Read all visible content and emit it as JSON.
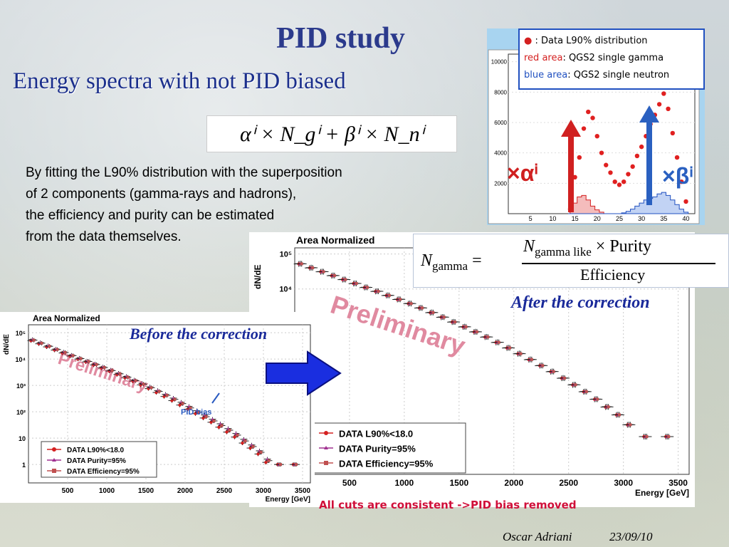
{
  "title": "PID study",
  "subtitle": "Energy spectra with not PID biased",
  "fit_formula": "αⁱ × N_gⁱ + βⁱ × N_nⁱ",
  "description": [
    "By fitting the L90% distribution with the superposition",
    "of 2 components (gamma-rays and hadrons),",
    "the efficiency and purity can be estimated",
    "from the data themselves."
  ],
  "inset": {
    "legend": [
      {
        "marker": "●",
        "key": "",
        "label": ": Data L90% distribution",
        "color": "#d42020"
      },
      {
        "marker": "",
        "key": "red area",
        "label": ": QGS2 single gamma",
        "color": "#d42020"
      },
      {
        "marker": "",
        "key": "blue area",
        "label": ": QGS2 single neutron",
        "color": "#2050c0"
      }
    ],
    "alpha_label": "×αⁱ",
    "beta_label": "×βⁱ",
    "y_ticks": [
      "10000",
      "8000",
      "6000",
      "4000",
      "2000"
    ],
    "x_ticks": [
      "5",
      "10",
      "15",
      "20",
      "25",
      "30",
      "35",
      "40"
    ]
  },
  "correction_formula": {
    "lhs": "N",
    "lhs_sub": "gamma",
    "num": "N",
    "num_sub": "gamma like",
    "num_tail": "× Purity",
    "den": "Efficiency"
  },
  "label_before": "Before the correction",
  "label_after": "After the correction",
  "pid_bias_label": "PID bias",
  "consistency_note": "All cuts are consistent ->PID bias removed",
  "footer": {
    "author": "Oscar Adriani",
    "date": "23/09/10"
  },
  "colors": {
    "title": "#2b3a8c",
    "accent": "#1a2a9a",
    "data": "#d42020",
    "purity": "#a03090",
    "efficiency": "#c05050",
    "arrow": "#1a2ee0"
  },
  "chart_data": [
    {
      "type": "scatter",
      "title": "Area Normalized",
      "watermark": "Preliminary",
      "ylabel": "dN/dE",
      "xlabel": "Energy [GeV]",
      "log_y": true,
      "xlim": [
        0,
        3600
      ],
      "x_ticks": [
        "500",
        "1000",
        "1500",
        "2000",
        "2500",
        "3000",
        "3500"
      ],
      "y_ticks": [
        "10⁵",
        "10⁴",
        "10³",
        "10²",
        "10",
        "1"
      ],
      "y_tick_values": [
        100000,
        10000,
        1000,
        100,
        10,
        1
      ],
      "ylim": [
        0.2,
        200000
      ],
      "x": [
        50,
        150,
        250,
        350,
        450,
        550,
        650,
        750,
        850,
        950,
        1050,
        1150,
        1250,
        1350,
        1450,
        1550,
        1650,
        1750,
        1850,
        1950,
        2050,
        2150,
        2250,
        2350,
        2450,
        2550,
        2650,
        2750,
        2850,
        2950,
        3050,
        3200,
        3400
      ],
      "series": [
        {
          "name": "DATA L90%<18.0",
          "values": [
            50000,
            38000,
            29000,
            22000,
            17000,
            13000,
            10000,
            7800,
            6000,
            4600,
            3500,
            2600,
            1950,
            1450,
            1050,
            760,
            540,
            380,
            265,
            180,
            125,
            85,
            58,
            40,
            26,
            17,
            11,
            6.5,
            4.2,
            2.5,
            1.2,
            1.0,
            1.0
          ]
        },
        {
          "name": "DATA Purity=95%",
          "values": [
            55000,
            42000,
            32000,
            24000,
            18500,
            14000,
            10800,
            8400,
            6500,
            5000,
            3800,
            2900,
            2200,
            1600,
            1200,
            880,
            640,
            460,
            330,
            230,
            160,
            110,
            75,
            52,
            35,
            23,
            15,
            9,
            5.5,
            3.3,
            1.6,
            1.0,
            1.0
          ]
        },
        {
          "name": "DATA Efficiency=95%",
          "values": [
            52000,
            40000,
            30500,
            23000,
            17800,
            13500,
            10400,
            8100,
            6200,
            4800,
            3650,
            2750,
            2050,
            1520,
            1120,
            820,
            590,
            420,
            295,
            205,
            140,
            96,
            65,
            45,
            30,
            20,
            13,
            7.8,
            4.8,
            2.9,
            1.4,
            1.0,
            1.0
          ]
        }
      ]
    },
    {
      "type": "scatter",
      "title": "Area Normalized",
      "watermark": "Preliminary",
      "ylabel": "dN/dE",
      "xlabel": "Energy [GeV]",
      "log_y": true,
      "xlim": [
        0,
        3600
      ],
      "x_ticks": [
        "500",
        "1000",
        "1500",
        "2000",
        "2500",
        "3000",
        "3500"
      ],
      "y_ticks": [
        "10⁵",
        "10⁴"
      ],
      "y_tick_values": [
        100000,
        10000
      ],
      "ylim": [
        0.05,
        150000
      ],
      "x": [
        50,
        150,
        250,
        350,
        450,
        550,
        650,
        750,
        850,
        950,
        1050,
        1150,
        1250,
        1350,
        1450,
        1550,
        1650,
        1750,
        1850,
        1950,
        2050,
        2150,
        2250,
        2350,
        2450,
        2550,
        2650,
        2750,
        2850,
        2950,
        3050,
        3200,
        3400
      ],
      "series": [
        {
          "name": "DATA L90%<18.0",
          "values": [
            52000,
            40000,
            31000,
            24000,
            18500,
            14300,
            11000,
            8500,
            6500,
            5000,
            3800,
            2850,
            2100,
            1550,
            1130,
            820,
            590,
            420,
            295,
            205,
            140,
            95,
            64,
            43,
            28,
            18,
            11.5,
            7,
            4.2,
            2.5,
            1.3,
            0.6,
            0.6
          ]
        },
        {
          "name": "DATA Purity=95%",
          "values": [
            53000,
            40800,
            31500,
            24400,
            18800,
            14500,
            11200,
            8650,
            6600,
            5100,
            3870,
            2900,
            2140,
            1580,
            1150,
            835,
            600,
            428,
            300,
            209,
            143,
            97,
            65,
            44,
            28.5,
            18.4,
            11.7,
            7.1,
            4.3,
            2.55,
            1.32,
            0.6,
            0.6
          ]
        },
        {
          "name": "DATA Efficiency=95%",
          "values": [
            52500,
            40400,
            31200,
            24200,
            18600,
            14400,
            11100,
            8580,
            6550,
            5050,
            3830,
            2870,
            2120,
            1565,
            1140,
            828,
            595,
            424,
            298,
            207,
            141,
            96,
            64.5,
            43.5,
            28.2,
            18.2,
            11.6,
            7.05,
            4.25,
            2.52,
            1.31,
            0.6,
            0.6
          ]
        }
      ]
    },
    {
      "type": "scatter",
      "title": "",
      "xlim": [
        0,
        42
      ],
      "ylim": [
        0,
        10500
      ],
      "x": [
        14,
        15,
        16,
        17,
        18,
        19,
        20,
        21,
        22,
        23,
        24,
        25,
        26,
        27,
        28,
        29,
        30,
        31,
        32,
        33,
        34,
        35,
        36,
        37,
        38,
        39,
        40
      ],
      "series": [
        {
          "name": "Data L90% distribution",
          "values": [
            1400,
            2400,
            3700,
            5600,
            6700,
            6300,
            5100,
            4000,
            3200,
            2700,
            2100,
            1900,
            2100,
            2600,
            3100,
            3800,
            4400,
            5100,
            5900,
            6500,
            7200,
            7900,
            6900,
            5300,
            3700,
            2100,
            800
          ]
        },
        {
          "name": "QGS2 single gamma",
          "values": [
            300,
            700,
            1100,
            1200,
            900,
            500,
            250,
            100,
            0,
            0,
            0,
            0,
            0,
            0,
            0,
            0,
            0,
            0,
            0,
            0,
            0,
            0,
            0,
            0,
            0,
            0,
            0
          ]
        },
        {
          "name": "QGS2 single neutron",
          "values": [
            0,
            0,
            0,
            0,
            0,
            0,
            0,
            0,
            0,
            0,
            0,
            0,
            50,
            150,
            300,
            500,
            700,
            900,
            1000,
            1100,
            1300,
            1400,
            1200,
            900,
            600,
            300,
            100
          ]
        }
      ]
    }
  ]
}
